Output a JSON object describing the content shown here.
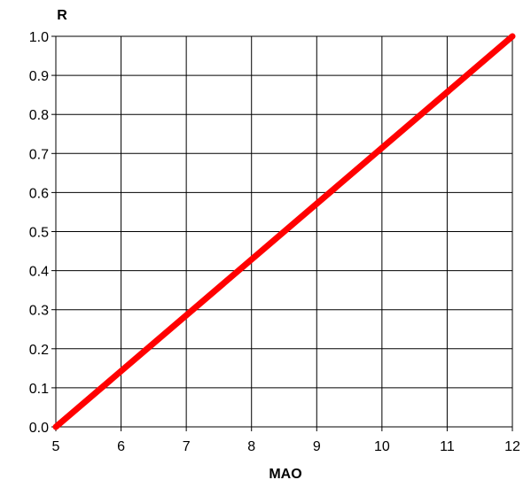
{
  "chart_data": {
    "type": "line",
    "title": "",
    "xlabel": "MAO",
    "ylabel": "R",
    "xlim": [
      5,
      12
    ],
    "ylim": [
      0,
      1
    ],
    "x_ticks": [
      "5",
      "6",
      "7",
      "8",
      "9",
      "10",
      "11",
      "12"
    ],
    "y_ticks": [
      "0.0",
      "0.1",
      "0.2",
      "0.3",
      "0.4",
      "0.5",
      "0.6",
      "0.7",
      "0.8",
      "0.9",
      "1.0"
    ],
    "grid": true,
    "series": [
      {
        "x": [
          5,
          12
        ],
        "y": [
          0.0,
          1.0
        ],
        "color": "#ff0000"
      }
    ]
  }
}
